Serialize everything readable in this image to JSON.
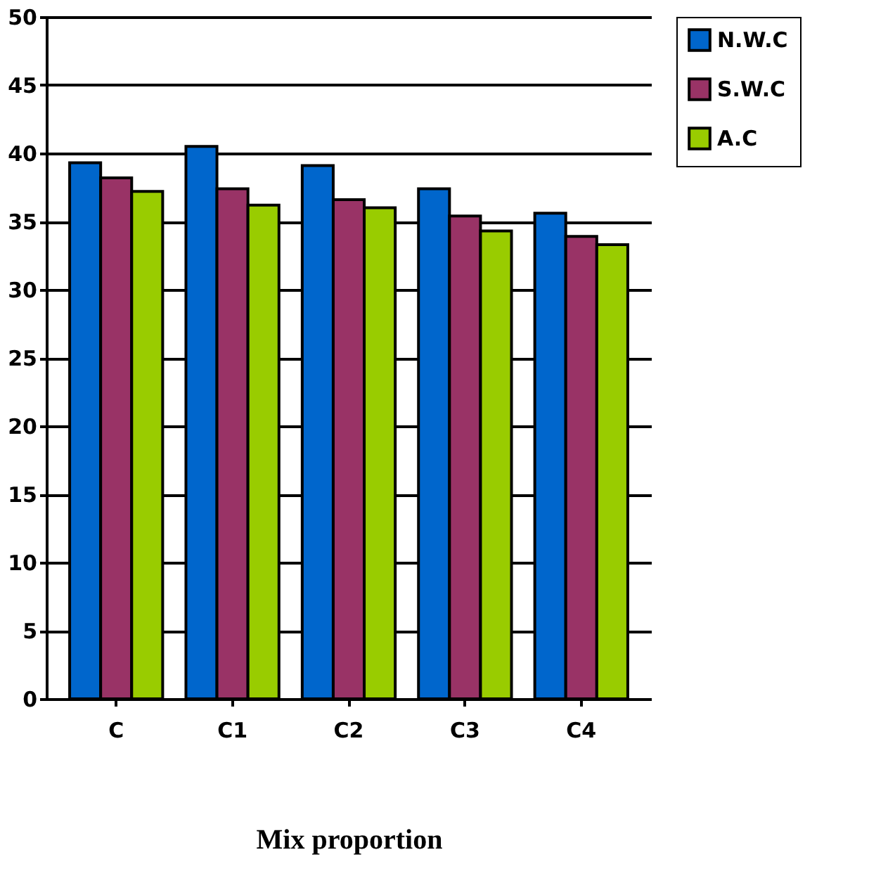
{
  "chart_data": {
    "type": "bar",
    "xlabel": "Mix proportion",
    "categories": [
      "C",
      "C1",
      "C2",
      "C3",
      "C4"
    ],
    "series": [
      {
        "name": "N.W.C",
        "color": "#0066cc",
        "values": [
          39.3,
          40.5,
          39.1,
          37.4,
          35.6
        ]
      },
      {
        "name": "S.W.C",
        "color": "#993366",
        "values": [
          38.2,
          37.4,
          36.6,
          35.4,
          33.9
        ]
      },
      {
        "name": "A.C",
        "color": "#99cc00",
        "values": [
          37.2,
          36.2,
          36.0,
          34.3,
          33.3
        ]
      }
    ],
    "ylim": [
      0,
      50
    ],
    "yticks": [
      0,
      5,
      10,
      15,
      20,
      25,
      30,
      35,
      40,
      45,
      50
    ],
    "grid": "y",
    "legend": "right"
  }
}
